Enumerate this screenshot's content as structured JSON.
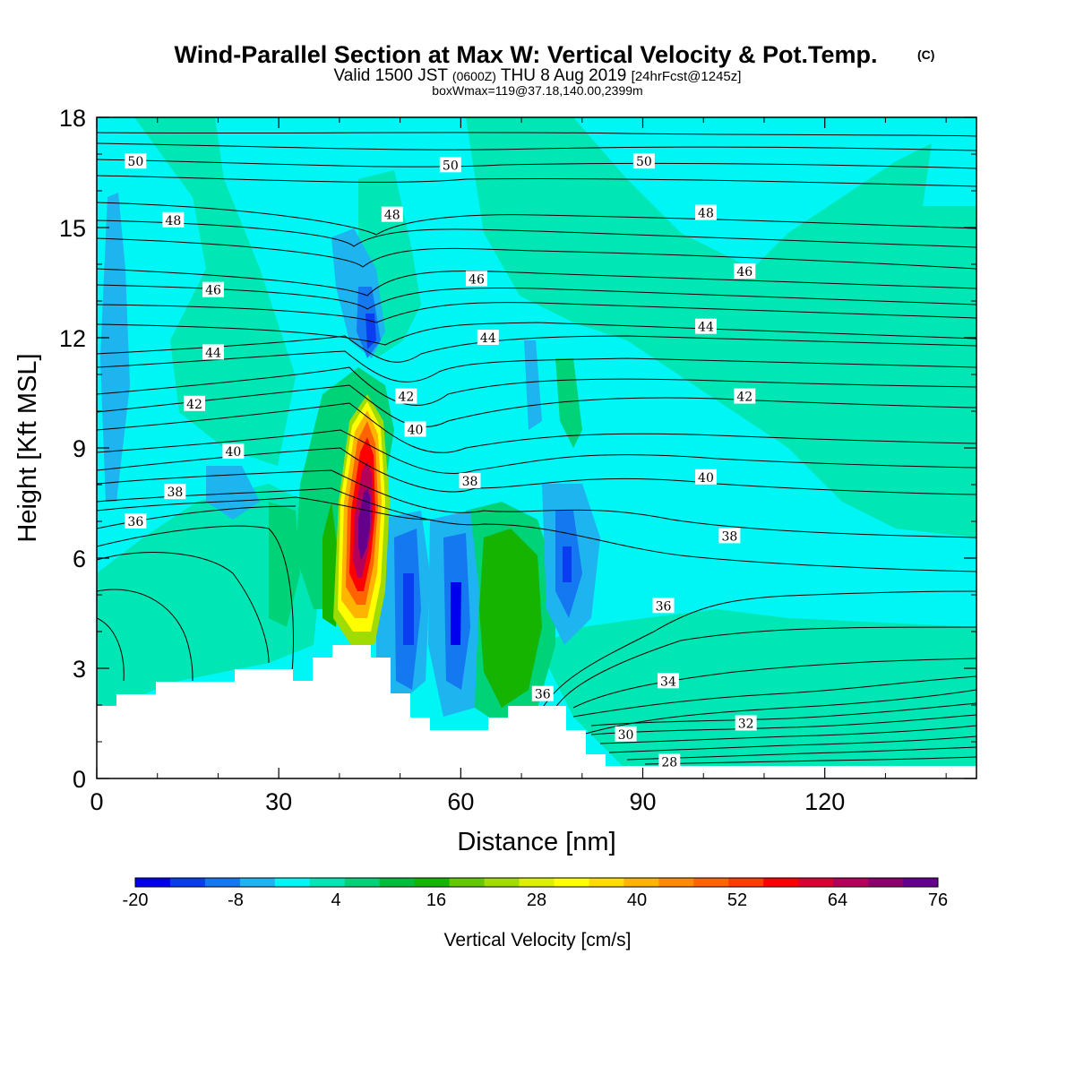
{
  "header": {
    "title": "Wind-Parallel Section at Max W: Vertical Velocity & Pot.Temp.",
    "title_mark": "(C)",
    "valid_a": "Valid 1500 JST",
    "valid_b": "(0600Z)",
    "valid_c": "THU 8 Aug 2019",
    "valid_d": "[24hrFcst@1245z]",
    "box": "boxWmax=119@37.18,140.00,2399m"
  },
  "chart_data": {
    "type": "contour",
    "xlabel": "Distance [nm]",
    "ylabel": "Height [Kft MSL]",
    "xlim": [
      0,
      145
    ],
    "ylim": [
      0,
      18
    ],
    "x_ticks": [
      "0",
      "30",
      "60",
      "90",
      "120"
    ],
    "y_ticks": [
      "0",
      "3",
      "6",
      "9",
      "12",
      "15",
      "18"
    ],
    "x_tick_values": [
      0,
      30,
      60,
      90,
      120
    ],
    "y_tick_values": [
      0,
      3,
      6,
      9,
      12,
      15,
      18
    ],
    "colorbar": {
      "title": "Vertical Velocity [cm/s]",
      "labels": [
        "-20",
        "-8",
        "4",
        "16",
        "28",
        "40",
        "52",
        "64",
        "76"
      ],
      "colors": [
        "#0000ee",
        "#0a3cf0",
        "#1478f0",
        "#1eb4f0",
        "#00f5f5",
        "#00e6b4",
        "#00d278",
        "#00be3c",
        "#14b400",
        "#64c800",
        "#a0dc00",
        "#dcf000",
        "#ffff00",
        "#ffdc00",
        "#ffb400",
        "#ff8c00",
        "#ff6400",
        "#ff3c00",
        "#ff0000",
        "#dc0032",
        "#b4005a",
        "#8c006e",
        "#64008c"
      ]
    },
    "theta_labels": [
      {
        "text": "50",
        "x": 6.4,
        "y": 16.8
      },
      {
        "text": "50",
        "x": 58.3,
        "y": 16.7
      },
      {
        "text": "50",
        "x": 90.2,
        "y": 16.8
      },
      {
        "text": "48",
        "x": 12.6,
        "y": 15.2
      },
      {
        "text": "48",
        "x": 48.7,
        "y": 15.35
      },
      {
        "text": "48",
        "x": 100.4,
        "y": 15.4
      },
      {
        "text": "46",
        "x": 19.2,
        "y": 13.3
      },
      {
        "text": "46",
        "x": 62.6,
        "y": 13.6
      },
      {
        "text": "46",
        "x": 106.8,
        "y": 13.8
      },
      {
        "text": "44",
        "x": 19.2,
        "y": 11.6
      },
      {
        "text": "44",
        "x": 64.5,
        "y": 12.0
      },
      {
        "text": "44",
        "x": 100.4,
        "y": 12.3
      },
      {
        "text": "42",
        "x": 16.1,
        "y": 10.2
      },
      {
        "text": "42",
        "x": 51.0,
        "y": 10.4
      },
      {
        "text": "42",
        "x": 106.8,
        "y": 10.4
      },
      {
        "text": "40",
        "x": 22.5,
        "y": 8.9
      },
      {
        "text": "40",
        "x": 52.5,
        "y": 9.5
      },
      {
        "text": "40",
        "x": 100.4,
        "y": 8.2
      },
      {
        "text": "38",
        "x": 12.9,
        "y": 7.8
      },
      {
        "text": "38",
        "x": 61.5,
        "y": 8.1
      },
      {
        "text": "38",
        "x": 104.3,
        "y": 6.6
      },
      {
        "text": "36",
        "x": 6.4,
        "y": 7.0
      },
      {
        "text": "36",
        "x": 93.4,
        "y": 4.7
      },
      {
        "text": "36",
        "x": 73.5,
        "y": 2.3
      },
      {
        "text": "34",
        "x": 94.2,
        "y": 2.65
      },
      {
        "text": "32",
        "x": 107.0,
        "y": 1.5
      },
      {
        "text": "30",
        "x": 87.2,
        "y": 1.2
      },
      {
        "text": "28",
        "x": 94.4,
        "y": 0.45
      }
    ]
  }
}
